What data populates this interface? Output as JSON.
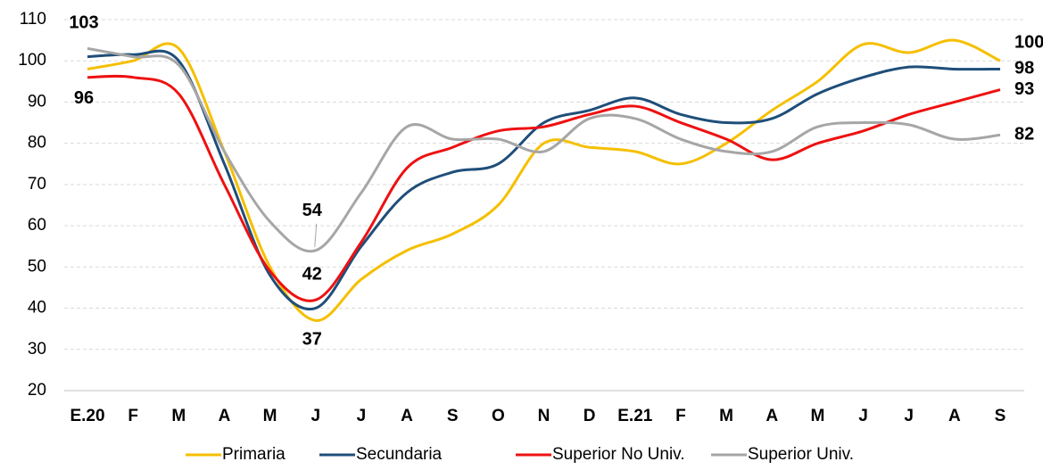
{
  "chart_data": {
    "type": "line",
    "categories": [
      "E.20",
      "F",
      "M",
      "A",
      "M",
      "J",
      "J",
      "A",
      "S",
      "O",
      "N",
      "D",
      "E.21",
      "F",
      "M",
      "A",
      "M",
      "J",
      "J",
      "A",
      "S"
    ],
    "ylim": [
      20,
      110
    ],
    "yticks": [
      20,
      30,
      40,
      50,
      60,
      70,
      80,
      90,
      100,
      110
    ],
    "grid": true,
    "legend": "bottom",
    "series": [
      {
        "name": "Primaria",
        "color": "#f5bf00",
        "values": [
          98,
          100,
          103,
          78,
          50,
          37,
          47,
          54,
          58,
          65,
          80,
          79,
          78,
          75,
          80,
          88,
          95,
          104,
          102,
          105,
          100
        ],
        "value_labels": [
          null,
          null,
          null,
          null,
          null,
          "37",
          null,
          null,
          null,
          null,
          null,
          null,
          null,
          null,
          null,
          null,
          null,
          null,
          null,
          null,
          "100"
        ]
      },
      {
        "name": "Secundaria",
        "color": "#1f4e79",
        "values": [
          101,
          101.5,
          100,
          75,
          48,
          40,
          55,
          68,
          73,
          75,
          85,
          88,
          91,
          87,
          85,
          86,
          92,
          96,
          98.5,
          98,
          98
        ],
        "value_labels": [
          null,
          null,
          null,
          null,
          null,
          null,
          null,
          null,
          null,
          null,
          null,
          null,
          null,
          null,
          null,
          null,
          null,
          null,
          null,
          null,
          "98"
        ]
      },
      {
        "name": "Superior No Univ.",
        "color": "#ee1111",
        "values": [
          96,
          96,
          92,
          70,
          49,
          42,
          56,
          74,
          79,
          83,
          84,
          87,
          89,
          85,
          81,
          76,
          80,
          83,
          87,
          90,
          93
        ],
        "value_labels": [
          "96",
          null,
          null,
          null,
          null,
          "42",
          null,
          null,
          null,
          null,
          null,
          null,
          null,
          null,
          null,
          null,
          null,
          null,
          null,
          null,
          "93"
        ]
      },
      {
        "name": "Superior Univ.",
        "color": "#a6a6a6",
        "values": [
          103,
          101,
          99,
          78,
          61,
          54,
          68,
          84,
          81,
          81,
          78,
          86,
          86,
          81,
          78,
          78,
          84,
          85,
          84.5,
          81,
          82
        ],
        "value_labels": [
          "103",
          null,
          null,
          null,
          null,
          "54",
          null,
          null,
          null,
          null,
          null,
          null,
          null,
          null,
          null,
          null,
          null,
          null,
          null,
          null,
          "82"
        ]
      }
    ]
  }
}
